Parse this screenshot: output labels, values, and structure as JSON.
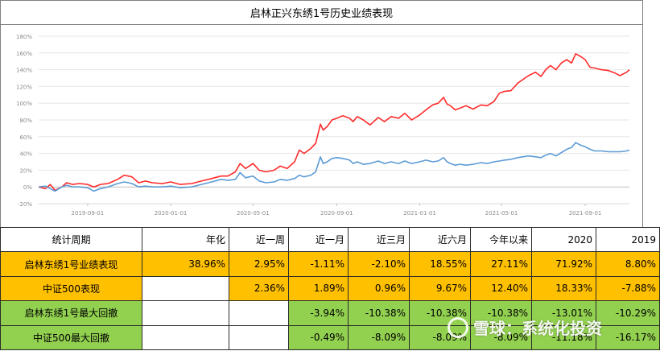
{
  "title": "启林正兴东绣1号历史业绩表现",
  "chart_data": {
    "type": "line",
    "ylim": [
      -20,
      180
    ],
    "yticks": [
      "-20%",
      "0%",
      "20%",
      "40%",
      "60%",
      "80%",
      "100%",
      "120%",
      "140%",
      "160%",
      "180%"
    ],
    "yvalues": [
      -20,
      0,
      20,
      40,
      60,
      80,
      100,
      120,
      140,
      160,
      180
    ],
    "xlim": [
      "2019-06-21",
      "2021-11-05"
    ],
    "xticks": [
      {
        "date": "2019-09-01",
        "label": "2019-09-01"
      },
      {
        "date": "2020-01-01",
        "label": "2020-01-01"
      },
      {
        "date": "2020-05-01",
        "label": "2020-05-01"
      },
      {
        "date": "2020-09-01",
        "label": "2020-09-01"
      },
      {
        "date": "2021-01-01",
        "label": "2021-01-01"
      },
      {
        "date": "2021-05-01",
        "label": "2021-05-01"
      },
      {
        "date": "2021-09-01",
        "label": "2021-09-01"
      }
    ],
    "series": [
      {
        "color": "#ff2b2b",
        "points": [
          [
            "2019-06-21",
            0
          ],
          [
            "2019-07-01",
            -2
          ],
          [
            "2019-07-08",
            3
          ],
          [
            "2019-07-15",
            -4
          ],
          [
            "2019-07-25",
            0
          ],
          [
            "2019-08-01",
            5
          ],
          [
            "2019-08-10",
            3
          ],
          [
            "2019-08-20",
            4
          ],
          [
            "2019-09-01",
            3
          ],
          [
            "2019-09-10",
            0
          ],
          [
            "2019-09-20",
            3
          ],
          [
            "2019-10-01",
            4
          ],
          [
            "2019-10-15",
            9
          ],
          [
            "2019-10-25",
            14
          ],
          [
            "2019-11-05",
            12
          ],
          [
            "2019-11-15",
            5
          ],
          [
            "2019-11-25",
            7
          ],
          [
            "2019-12-05",
            5
          ],
          [
            "2019-12-20",
            4
          ],
          [
            "2020-01-01",
            6
          ],
          [
            "2020-01-15",
            3
          ],
          [
            "2020-02-01",
            4
          ],
          [
            "2020-02-15",
            7
          ],
          [
            "2020-03-01",
            10
          ],
          [
            "2020-03-15",
            13
          ],
          [
            "2020-03-25",
            13
          ],
          [
            "2020-04-05",
            18
          ],
          [
            "2020-04-12",
            28
          ],
          [
            "2020-04-20",
            22
          ],
          [
            "2020-05-01",
            28
          ],
          [
            "2020-05-10",
            20
          ],
          [
            "2020-05-20",
            18
          ],
          [
            "2020-06-01",
            20
          ],
          [
            "2020-06-10",
            25
          ],
          [
            "2020-06-20",
            22
          ],
          [
            "2020-07-01",
            30
          ],
          [
            "2020-07-08",
            44
          ],
          [
            "2020-07-15",
            40
          ],
          [
            "2020-07-25",
            46
          ],
          [
            "2020-08-01",
            52
          ],
          [
            "2020-08-08",
            75
          ],
          [
            "2020-08-12",
            68
          ],
          [
            "2020-08-18",
            72
          ],
          [
            "2020-08-25",
            80
          ],
          [
            "2020-09-01",
            82
          ],
          [
            "2020-09-10",
            85
          ],
          [
            "2020-09-20",
            82
          ],
          [
            "2020-09-25",
            78
          ],
          [
            "2020-10-01",
            84
          ],
          [
            "2020-10-10",
            80
          ],
          [
            "2020-10-20",
            74
          ],
          [
            "2020-11-01",
            83
          ],
          [
            "2020-11-10",
            78
          ],
          [
            "2020-11-20",
            84
          ],
          [
            "2020-12-01",
            82
          ],
          [
            "2020-12-10",
            88
          ],
          [
            "2020-12-20",
            80
          ],
          [
            "2021-01-01",
            86
          ],
          [
            "2021-01-10",
            92
          ],
          [
            "2021-01-20",
            98
          ],
          [
            "2021-01-28",
            100
          ],
          [
            "2021-02-05",
            107
          ],
          [
            "2021-02-10",
            99
          ],
          [
            "2021-02-15",
            97
          ],
          [
            "2021-02-22",
            92
          ],
          [
            "2021-03-01",
            94
          ],
          [
            "2021-03-10",
            97
          ],
          [
            "2021-03-20",
            93
          ],
          [
            "2021-04-01",
            98
          ],
          [
            "2021-04-10",
            97
          ],
          [
            "2021-04-20",
            102
          ],
          [
            "2021-04-28",
            112
          ],
          [
            "2021-05-05",
            114
          ],
          [
            "2021-05-15",
            115
          ],
          [
            "2021-05-25",
            124
          ],
          [
            "2021-06-01",
            128
          ],
          [
            "2021-06-10",
            133
          ],
          [
            "2021-06-20",
            137
          ],
          [
            "2021-06-28",
            132
          ],
          [
            "2021-07-05",
            140
          ],
          [
            "2021-07-12",
            145
          ],
          [
            "2021-07-20",
            140
          ],
          [
            "2021-07-28",
            148
          ],
          [
            "2021-08-05",
            152
          ],
          [
            "2021-08-12",
            148
          ],
          [
            "2021-08-18",
            159
          ],
          [
            "2021-08-25",
            156
          ],
          [
            "2021-09-01",
            152
          ],
          [
            "2021-09-08",
            143
          ],
          [
            "2021-09-15",
            142
          ],
          [
            "2021-09-25",
            140
          ],
          [
            "2021-10-05",
            139
          ],
          [
            "2021-10-15",
            136
          ],
          [
            "2021-10-22",
            133
          ],
          [
            "2021-11-01",
            137
          ],
          [
            "2021-11-05",
            140
          ]
        ]
      },
      {
        "color": "#5b9bd5",
        "points": [
          [
            "2019-06-21",
            0
          ],
          [
            "2019-07-01",
            1
          ],
          [
            "2019-07-08",
            -2
          ],
          [
            "2019-07-15",
            -5
          ],
          [
            "2019-07-25",
            0
          ],
          [
            "2019-08-01",
            2
          ],
          [
            "2019-08-10",
            0
          ],
          [
            "2019-08-20",
            0
          ],
          [
            "2019-09-01",
            -1
          ],
          [
            "2019-09-10",
            -5
          ],
          [
            "2019-09-20",
            -2
          ],
          [
            "2019-10-01",
            0
          ],
          [
            "2019-10-15",
            4
          ],
          [
            "2019-10-25",
            6
          ],
          [
            "2019-11-05",
            4
          ],
          [
            "2019-11-15",
            0
          ],
          [
            "2019-11-25",
            1
          ],
          [
            "2019-12-05",
            0
          ],
          [
            "2019-12-20",
            0
          ],
          [
            "2020-01-01",
            1
          ],
          [
            "2020-01-15",
            -1
          ],
          [
            "2020-02-01",
            0
          ],
          [
            "2020-02-15",
            3
          ],
          [
            "2020-03-01",
            6
          ],
          [
            "2020-03-15",
            9
          ],
          [
            "2020-03-25",
            8
          ],
          [
            "2020-04-05",
            9
          ],
          [
            "2020-04-12",
            17
          ],
          [
            "2020-04-20",
            11
          ],
          [
            "2020-05-01",
            13
          ],
          [
            "2020-05-10",
            7
          ],
          [
            "2020-05-20",
            5
          ],
          [
            "2020-06-01",
            6
          ],
          [
            "2020-06-10",
            9
          ],
          [
            "2020-06-20",
            8
          ],
          [
            "2020-07-01",
            10
          ],
          [
            "2020-07-08",
            14
          ],
          [
            "2020-07-15",
            12
          ],
          [
            "2020-07-25",
            14
          ],
          [
            "2020-08-01",
            18
          ],
          [
            "2020-08-08",
            36
          ],
          [
            "2020-08-12",
            28
          ],
          [
            "2020-08-18",
            30
          ],
          [
            "2020-08-25",
            34
          ],
          [
            "2020-09-01",
            35
          ],
          [
            "2020-09-10",
            34
          ],
          [
            "2020-09-20",
            32
          ],
          [
            "2020-09-25",
            28
          ],
          [
            "2020-10-01",
            30
          ],
          [
            "2020-10-10",
            27
          ],
          [
            "2020-10-20",
            28
          ],
          [
            "2020-11-01",
            31
          ],
          [
            "2020-11-10",
            28
          ],
          [
            "2020-11-20",
            30
          ],
          [
            "2020-12-01",
            28
          ],
          [
            "2020-12-10",
            31
          ],
          [
            "2020-12-20",
            28
          ],
          [
            "2021-01-01",
            30
          ],
          [
            "2021-01-10",
            32
          ],
          [
            "2021-01-20",
            30
          ],
          [
            "2021-01-28",
            31
          ],
          [
            "2021-02-05",
            35
          ],
          [
            "2021-02-10",
            30
          ],
          [
            "2021-02-15",
            28
          ],
          [
            "2021-02-22",
            26
          ],
          [
            "2021-03-01",
            27
          ],
          [
            "2021-03-10",
            26
          ],
          [
            "2021-03-20",
            27
          ],
          [
            "2021-04-01",
            29
          ],
          [
            "2021-04-10",
            28
          ],
          [
            "2021-04-20",
            30
          ],
          [
            "2021-04-28",
            31
          ],
          [
            "2021-05-05",
            32
          ],
          [
            "2021-05-15",
            33
          ],
          [
            "2021-05-25",
            35
          ],
          [
            "2021-06-01",
            36
          ],
          [
            "2021-06-10",
            37
          ],
          [
            "2021-06-20",
            36
          ],
          [
            "2021-06-28",
            35
          ],
          [
            "2021-07-05",
            38
          ],
          [
            "2021-07-12",
            40
          ],
          [
            "2021-07-20",
            37
          ],
          [
            "2021-07-28",
            41
          ],
          [
            "2021-08-05",
            45
          ],
          [
            "2021-08-12",
            47
          ],
          [
            "2021-08-18",
            53
          ],
          [
            "2021-08-25",
            50
          ],
          [
            "2021-09-01",
            48
          ],
          [
            "2021-09-08",
            45
          ],
          [
            "2021-09-15",
            43
          ],
          [
            "2021-09-25",
            43
          ],
          [
            "2021-10-05",
            42
          ],
          [
            "2021-10-15",
            42
          ],
          [
            "2021-10-22",
            42
          ],
          [
            "2021-11-01",
            43
          ],
          [
            "2021-11-05",
            44
          ]
        ]
      }
    ]
  },
  "table": {
    "header": [
      "统计周期",
      "年化",
      "近一周",
      "近一月",
      "近三月",
      "近六月",
      "今年以来",
      "2020",
      "2019"
    ],
    "rows": [
      {
        "label": "启林东绣1号业绩表现",
        "cells": [
          "38.96%",
          "2.95%",
          "-1.11%",
          "-2.10%",
          "18.55%",
          "27.11%",
          "71.92%",
          "8.80%"
        ],
        "label_color": "#ffc000",
        "cell_colors": [
          "#ffc000",
          "#ffc000",
          "#ffc000",
          "#ffc000",
          "#ffc000",
          "#ffc000",
          "#ffc000",
          "#ffc000"
        ]
      },
      {
        "label": "中证500表现",
        "cells": [
          "",
          "2.36%",
          "1.89%",
          "0.96%",
          "9.67%",
          "12.40%",
          "18.33%",
          "-7.88%"
        ],
        "label_color": "#ffc000",
        "cell_colors": [
          "#ffffff",
          "#ffc000",
          "#ffc000",
          "#ffc000",
          "#ffc000",
          "#ffc000",
          "#ffc000",
          "#ffc000"
        ]
      },
      {
        "label": "启林东绣1号最大回撤",
        "cells": [
          "",
          "",
          "-3.94%",
          "-10.38%",
          "-10.38%",
          "-10.38%",
          "-13.01%",
          "-10.29%"
        ],
        "label_color": "#92d050",
        "cell_colors": [
          "#ffffff",
          "#ffffff",
          "#92d050",
          "#92d050",
          "#92d050",
          "#92d050",
          "#92d050",
          "#92d050"
        ]
      },
      {
        "label": "中证500最大回撤",
        "cells": [
          "",
          "",
          "-0.49%",
          "-8.09%",
          "-8.09%",
          "-8.09%",
          "-11.18%",
          "-16.17%"
        ],
        "label_color": "#92d050",
        "cell_colors": [
          "#ffffff",
          "#ffffff",
          "#92d050",
          "#92d050",
          "#92d050",
          "#92d050",
          "#92d050",
          "#92d050"
        ]
      }
    ]
  },
  "watermark": {
    "icon": "snowball-logo-icon",
    "text": "雪球：系统化投资"
  }
}
